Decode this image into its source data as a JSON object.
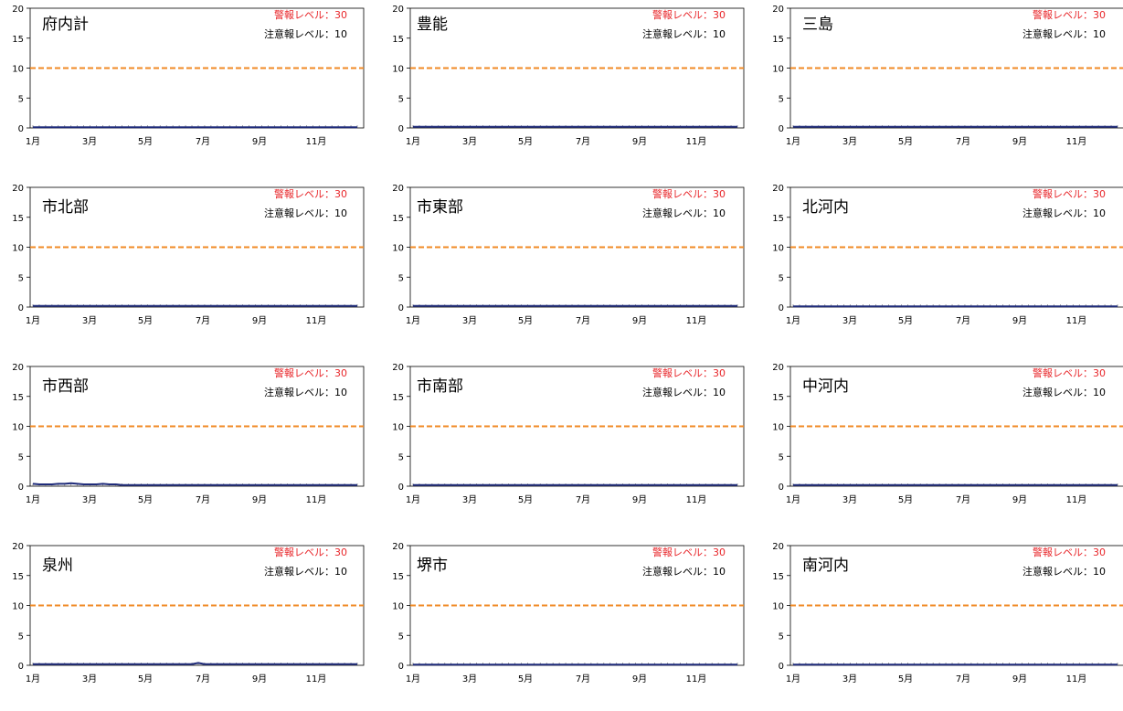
{
  "chart_data": [
    {
      "type": "line",
      "title": "府内計",
      "warning_label": "警報レベル：30",
      "caution_label": "注意報レベル：10",
      "ylim": [
        0,
        20
      ],
      "yticks": [
        0,
        5,
        10,
        15,
        20
      ],
      "x_tick_labels": [
        "1月",
        "3月",
        "5月",
        "7月",
        "9月",
        "11月"
      ],
      "threshold_line": 10,
      "series": [
        {
          "values": [
            0.1,
            0.1,
            0.1,
            0.1,
            0.1,
            0.1,
            0.1,
            0.1,
            0.1,
            0.1,
            0.1,
            0.1,
            0.1,
            0.1,
            0.1,
            0.1,
            0.1,
            0.1,
            0.1,
            0.1,
            0.1,
            0.1,
            0.1,
            0.1,
            0.1,
            0.1,
            0.1,
            0.1,
            0.1,
            0.1,
            0.1,
            0.1,
            0.1,
            0.1,
            0.1,
            0.1,
            0.1,
            0.1,
            0.1,
            0.1,
            0.1,
            0.1,
            0.1,
            0.1,
            0.1,
            0.1,
            0.1,
            0.1,
            0.1,
            0.1,
            0.1,
            0.1
          ]
        }
      ]
    },
    {
      "type": "line",
      "title": "豊能",
      "warning_label": "警報レベル：30",
      "caution_label": "注意報レベル：10",
      "ylim": [
        0,
        20
      ],
      "yticks": [
        0,
        5,
        10,
        15,
        20
      ],
      "x_tick_labels": [
        "1月",
        "3月",
        "5月",
        "7月",
        "9月",
        "11月"
      ],
      "threshold_line": 10,
      "series": [
        {
          "values": [
            0.2,
            0.2,
            0.2,
            0.2,
            0.2,
            0.2,
            0.2,
            0.2,
            0.2,
            0.2,
            0.2,
            0.2,
            0.2,
            0.2,
            0.2,
            0.2,
            0.2,
            0.2,
            0.2,
            0.2,
            0.2,
            0.2,
            0.2,
            0.2,
            0.2,
            0.2,
            0.2,
            0.2,
            0.2,
            0.2,
            0.2,
            0.2,
            0.2,
            0.2,
            0.2,
            0.2,
            0.2,
            0.2,
            0.2,
            0.2,
            0.2,
            0.2,
            0.2,
            0.2,
            0.2,
            0.2,
            0.2,
            0.2,
            0.2,
            0.2,
            0.2,
            0.2
          ]
        }
      ]
    },
    {
      "type": "line",
      "title": "三島",
      "warning_label": "警報レベル：30",
      "caution_label": "注意報レベル：10",
      "ylim": [
        0,
        20
      ],
      "yticks": [
        0,
        5,
        10,
        15,
        20
      ],
      "x_tick_labels": [
        "1月",
        "3月",
        "5月",
        "7月",
        "9月",
        "11月"
      ],
      "threshold_line": 10,
      "series": [
        {
          "values": [
            0.2,
            0.2,
            0.2,
            0.2,
            0.2,
            0.2,
            0.2,
            0.2,
            0.2,
            0.2,
            0.2,
            0.2,
            0.2,
            0.2,
            0.2,
            0.2,
            0.2,
            0.2,
            0.2,
            0.2,
            0.2,
            0.2,
            0.2,
            0.2,
            0.2,
            0.2,
            0.2,
            0.2,
            0.2,
            0.2,
            0.2,
            0.2,
            0.2,
            0.2,
            0.2,
            0.2,
            0.2,
            0.2,
            0.2,
            0.2,
            0.2,
            0.2,
            0.2,
            0.2,
            0.2,
            0.2,
            0.2,
            0.2,
            0.2,
            0.2,
            0.2,
            0.2
          ]
        }
      ]
    },
    {
      "type": "line",
      "title": "市北部",
      "warning_label": "警報レベル：30",
      "caution_label": "注意報レベル：10",
      "ylim": [
        0,
        20
      ],
      "yticks": [
        0,
        5,
        10,
        15,
        20
      ],
      "x_tick_labels": [
        "1月",
        "3月",
        "5月",
        "7月",
        "9月",
        "11月"
      ],
      "threshold_line": 10,
      "series": [
        {
          "values": [
            0.2,
            0.2,
            0.2,
            0.2,
            0.2,
            0.2,
            0.2,
            0.2,
            0.2,
            0.2,
            0.2,
            0.2,
            0.2,
            0.2,
            0.2,
            0.2,
            0.2,
            0.2,
            0.2,
            0.2,
            0.2,
            0.2,
            0.2,
            0.2,
            0.2,
            0.2,
            0.2,
            0.2,
            0.2,
            0.2,
            0.2,
            0.2,
            0.2,
            0.2,
            0.2,
            0.2,
            0.2,
            0.2,
            0.2,
            0.2,
            0.2,
            0.2,
            0.2,
            0.2,
            0.2,
            0.2,
            0.2,
            0.2,
            0.2,
            0.2,
            0.2,
            0.2
          ]
        }
      ]
    },
    {
      "type": "line",
      "title": "市東部",
      "warning_label": "警報レベル：30",
      "caution_label": "注意報レベル：10",
      "ylim": [
        0,
        20
      ],
      "yticks": [
        0,
        5,
        10,
        15,
        20
      ],
      "x_tick_labels": [
        "1月",
        "3月",
        "5月",
        "7月",
        "9月",
        "11月"
      ],
      "threshold_line": 10,
      "series": [
        {
          "values": [
            0.2,
            0.2,
            0.2,
            0.2,
            0.2,
            0.2,
            0.2,
            0.2,
            0.2,
            0.2,
            0.2,
            0.2,
            0.2,
            0.2,
            0.2,
            0.2,
            0.2,
            0.2,
            0.2,
            0.2,
            0.2,
            0.2,
            0.2,
            0.2,
            0.2,
            0.2,
            0.2,
            0.2,
            0.2,
            0.2,
            0.2,
            0.2,
            0.2,
            0.2,
            0.2,
            0.2,
            0.2,
            0.2,
            0.2,
            0.2,
            0.2,
            0.2,
            0.2,
            0.2,
            0.2,
            0.2,
            0.2,
            0.2,
            0.2,
            0.2,
            0.2,
            0.2
          ]
        }
      ]
    },
    {
      "type": "line",
      "title": "北河内",
      "warning_label": "警報レベル：30",
      "caution_label": "注意報レベル：10",
      "ylim": [
        0,
        20
      ],
      "yticks": [
        0,
        5,
        10,
        15,
        20
      ],
      "x_tick_labels": [
        "1月",
        "3月",
        "5月",
        "7月",
        "9月",
        "11月"
      ],
      "threshold_line": 10,
      "series": [
        {
          "values": [
            0.1,
            0.1,
            0.1,
            0.1,
            0.1,
            0.1,
            0.1,
            0.1,
            0.1,
            0.1,
            0.1,
            0.1,
            0.1,
            0.1,
            0.1,
            0.1,
            0.1,
            0.1,
            0.1,
            0.1,
            0.1,
            0.1,
            0.1,
            0.1,
            0.1,
            0.1,
            0.1,
            0.1,
            0.1,
            0.1,
            0.1,
            0.1,
            0.1,
            0.1,
            0.1,
            0.1,
            0.1,
            0.1,
            0.1,
            0.1,
            0.1,
            0.1,
            0.1,
            0.1,
            0.1,
            0.1,
            0.1,
            0.1,
            0.1,
            0.1,
            0.1,
            0.1
          ]
        }
      ]
    },
    {
      "type": "line",
      "title": "市西部",
      "warning_label": "警報レベル：30",
      "caution_label": "注意報レベル：10",
      "ylim": [
        0,
        20
      ],
      "yticks": [
        0,
        5,
        10,
        15,
        20
      ],
      "x_tick_labels": [
        "1月",
        "3月",
        "5月",
        "7月",
        "9月",
        "11月"
      ],
      "threshold_line": 10,
      "series": [
        {
          "values": [
            0.4,
            0.3,
            0.3,
            0.3,
            0.4,
            0.4,
            0.5,
            0.4,
            0.3,
            0.3,
            0.3,
            0.4,
            0.3,
            0.3,
            0.2,
            0.2,
            0.2,
            0.2,
            0.2,
            0.2,
            0.2,
            0.2,
            0.2,
            0.2,
            0.2,
            0.2,
            0.2,
            0.2,
            0.2,
            0.2,
            0.2,
            0.2,
            0.2,
            0.2,
            0.2,
            0.2,
            0.2,
            0.2,
            0.2,
            0.2,
            0.2,
            0.2,
            0.2,
            0.2,
            0.2,
            0.2,
            0.2,
            0.2,
            0.2,
            0.2,
            0.2,
            0.2
          ]
        }
      ]
    },
    {
      "type": "line",
      "title": "市南部",
      "warning_label": "警報レベル：30",
      "caution_label": "注意報レベル：10",
      "ylim": [
        0,
        20
      ],
      "yticks": [
        0,
        5,
        10,
        15,
        20
      ],
      "x_tick_labels": [
        "1月",
        "3月",
        "5月",
        "7月",
        "9月",
        "11月"
      ],
      "threshold_line": 10,
      "series": [
        {
          "values": [
            0.2,
            0.2,
            0.2,
            0.2,
            0.2,
            0.2,
            0.2,
            0.2,
            0.2,
            0.2,
            0.2,
            0.2,
            0.2,
            0.2,
            0.2,
            0.2,
            0.2,
            0.2,
            0.2,
            0.2,
            0.2,
            0.2,
            0.2,
            0.2,
            0.2,
            0.2,
            0.2,
            0.2,
            0.2,
            0.2,
            0.2,
            0.2,
            0.2,
            0.2,
            0.2,
            0.2,
            0.2,
            0.2,
            0.2,
            0.2,
            0.2,
            0.2,
            0.2,
            0.2,
            0.2,
            0.2,
            0.2,
            0.2,
            0.2,
            0.2,
            0.2,
            0.2
          ]
        }
      ]
    },
    {
      "type": "line",
      "title": "中河内",
      "warning_label": "警報レベル：30",
      "caution_label": "注意報レベル：10",
      "ylim": [
        0,
        20
      ],
      "yticks": [
        0,
        5,
        10,
        15,
        20
      ],
      "x_tick_labels": [
        "1月",
        "3月",
        "5月",
        "7月",
        "9月",
        "11月"
      ],
      "threshold_line": 10,
      "series": [
        {
          "values": [
            0.2,
            0.2,
            0.2,
            0.2,
            0.2,
            0.2,
            0.2,
            0.2,
            0.2,
            0.2,
            0.2,
            0.2,
            0.2,
            0.2,
            0.2,
            0.2,
            0.2,
            0.2,
            0.2,
            0.2,
            0.2,
            0.2,
            0.2,
            0.2,
            0.2,
            0.2,
            0.2,
            0.2,
            0.2,
            0.2,
            0.2,
            0.2,
            0.2,
            0.2,
            0.2,
            0.2,
            0.2,
            0.2,
            0.2,
            0.2,
            0.2,
            0.2,
            0.2,
            0.2,
            0.2,
            0.2,
            0.2,
            0.2,
            0.2,
            0.2,
            0.2,
            0.2
          ]
        }
      ]
    },
    {
      "type": "line",
      "title": "泉州",
      "warning_label": "警報レベル：30",
      "caution_label": "注意報レベル：10",
      "ylim": [
        0,
        20
      ],
      "yticks": [
        0,
        5,
        10,
        15,
        20
      ],
      "x_tick_labels": [
        "1月",
        "3月",
        "5月",
        "7月",
        "9月",
        "11月"
      ],
      "threshold_line": 10,
      "series": [
        {
          "values": [
            0.2,
            0.2,
            0.2,
            0.2,
            0.2,
            0.2,
            0.2,
            0.2,
            0.2,
            0.2,
            0.2,
            0.2,
            0.2,
            0.2,
            0.2,
            0.2,
            0.2,
            0.2,
            0.2,
            0.2,
            0.2,
            0.2,
            0.2,
            0.2,
            0.2,
            0.2,
            0.4,
            0.2,
            0.2,
            0.2,
            0.2,
            0.2,
            0.2,
            0.2,
            0.2,
            0.2,
            0.2,
            0.2,
            0.2,
            0.2,
            0.2,
            0.2,
            0.2,
            0.2,
            0.2,
            0.2,
            0.2,
            0.2,
            0.2,
            0.2,
            0.2,
            0.2
          ]
        }
      ]
    },
    {
      "type": "line",
      "title": "堺市",
      "warning_label": "警報レベル：30",
      "caution_label": "注意報レベル：10",
      "ylim": [
        0,
        20
      ],
      "yticks": [
        0,
        5,
        10,
        15,
        20
      ],
      "x_tick_labels": [
        "1月",
        "3月",
        "5月",
        "7月",
        "9月",
        "11月"
      ],
      "threshold_line": 10,
      "series": [
        {
          "values": [
            0.1,
            0.1,
            0.1,
            0.1,
            0.1,
            0.1,
            0.1,
            0.1,
            0.1,
            0.1,
            0.1,
            0.1,
            0.1,
            0.1,
            0.1,
            0.1,
            0.1,
            0.1,
            0.1,
            0.1,
            0.1,
            0.1,
            0.1,
            0.1,
            0.1,
            0.1,
            0.1,
            0.1,
            0.1,
            0.1,
            0.1,
            0.1,
            0.1,
            0.1,
            0.1,
            0.1,
            0.1,
            0.1,
            0.1,
            0.1,
            0.1,
            0.1,
            0.1,
            0.1,
            0.1,
            0.1,
            0.1,
            0.1,
            0.1,
            0.1,
            0.1,
            0.1
          ]
        }
      ]
    },
    {
      "type": "line",
      "title": "南河内",
      "warning_label": "警報レベル：30",
      "caution_label": "注意報レベル：10",
      "ylim": [
        0,
        20
      ],
      "yticks": [
        0,
        5,
        10,
        15,
        20
      ],
      "x_tick_labels": [
        "1月",
        "3月",
        "5月",
        "7月",
        "9月",
        "11月"
      ],
      "threshold_line": 10,
      "series": [
        {
          "values": [
            0.1,
            0.1,
            0.1,
            0.1,
            0.1,
            0.1,
            0.1,
            0.1,
            0.1,
            0.1,
            0.1,
            0.1,
            0.1,
            0.1,
            0.1,
            0.1,
            0.1,
            0.1,
            0.1,
            0.1,
            0.1,
            0.1,
            0.1,
            0.1,
            0.1,
            0.1,
            0.1,
            0.1,
            0.1,
            0.1,
            0.1,
            0.1,
            0.1,
            0.1,
            0.1,
            0.1,
            0.1,
            0.1,
            0.1,
            0.1,
            0.1,
            0.1,
            0.1,
            0.1,
            0.1,
            0.1,
            0.1,
            0.1,
            0.1,
            0.1,
            0.1,
            0.1
          ]
        }
      ]
    }
  ],
  "colors": {
    "series": "#1f2b7a",
    "threshold": "#f08a24",
    "warning": "#e8262a",
    "axis": "#000000"
  }
}
